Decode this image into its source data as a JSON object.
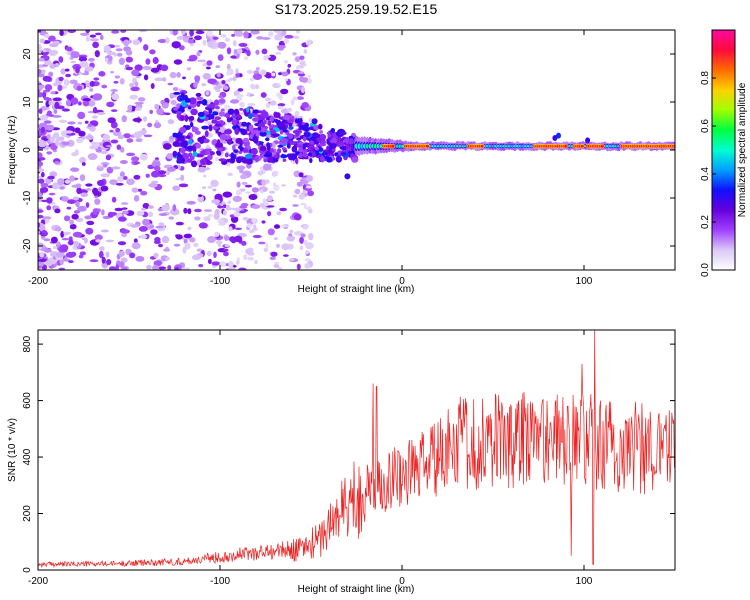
{
  "figure": {
    "title": "S173.2025.259.19.52.E15"
  },
  "chart_data": [
    {
      "type": "heatmap",
      "title": "S173.2025.259.19.52.E15",
      "xlabel": "Height of straight line (km)",
      "ylabel": "Frequency (Hz)",
      "xlim": [
        -200,
        150
      ],
      "ylim": [
        -25,
        25
      ],
      "x_ticks": [
        -200,
        -100,
        0,
        100
      ],
      "y_ticks": [
        -20,
        -10,
        0,
        10,
        20
      ],
      "colorbar": {
        "label": "Normalized spectral amplitude",
        "range": [
          0,
          1
        ],
        "ticks": [
          "0.0",
          "0.2",
          "0.4",
          "0.6",
          "0.8"
        ],
        "colormap": [
          "#ffffff",
          "#dcc8f8",
          "#a040ff",
          "#6600dd",
          "#1010ff",
          "#00a0ff",
          "#00ffd0",
          "#00ff40",
          "#a0ff00",
          "#ffd000",
          "#ff6a00",
          "#ff0a3c",
          "#ff0aa0"
        ]
      },
      "features": {
        "ridge_frequency_hz": 0.8,
        "ridge_onset_km": -30,
        "noise_region_km": [
          -200,
          -55
        ],
        "chirp_region_km": [
          -125,
          -25
        ],
        "peak_amplitude_segments_km": [
          [
            -10,
            -5
          ],
          [
            2,
            14
          ],
          [
            37,
            44
          ],
          [
            73,
            90
          ],
          [
            95,
            99
          ],
          [
            102,
            110
          ],
          [
            121,
            150
          ]
        ]
      }
    },
    {
      "type": "line",
      "xlabel": "Height of straight line (km)",
      "ylabel": "SNR (10 * v/v)",
      "xlim": [
        -200,
        150
      ],
      "ylim": [
        0,
        850
      ],
      "x_ticks": [
        -200,
        -100,
        0,
        100
      ],
      "y_ticks": [
        0,
        200,
        400,
        600,
        800
      ],
      "series": [
        {
          "name": "SNR",
          "color": "#ee2020",
          "envelope": {
            "x": [
              -200,
              -160,
              -120,
              -90,
              -65,
              -55,
              -45,
              -35,
              -25,
              -15,
              -5,
              5,
              15,
              25,
              35,
              45,
              60,
              80,
              100,
              120,
              150
            ],
            "y": [
              20,
              22,
              30,
              55,
              70,
              75,
              110,
              200,
              260,
              300,
              330,
              350,
              380,
              410,
              430,
              440,
              445,
              450,
              440,
              410,
              410
            ]
          },
          "spikes": [
            {
              "x": -16,
              "y": 660
            },
            {
              "x": -14,
              "y": 650
            },
            {
              "x": -2,
              "y": 420
            },
            {
              "x": 91,
              "y": 580
            },
            {
              "x": 94,
              "y": 620
            },
            {
              "x": 99,
              "y": 730
            },
            {
              "x": 106,
              "y": 850
            },
            {
              "x": 109,
              "y": 600
            },
            {
              "x": 93,
              "y": 50
            },
            {
              "x": 105,
              "y": 20
            }
          ]
        }
      ]
    }
  ]
}
